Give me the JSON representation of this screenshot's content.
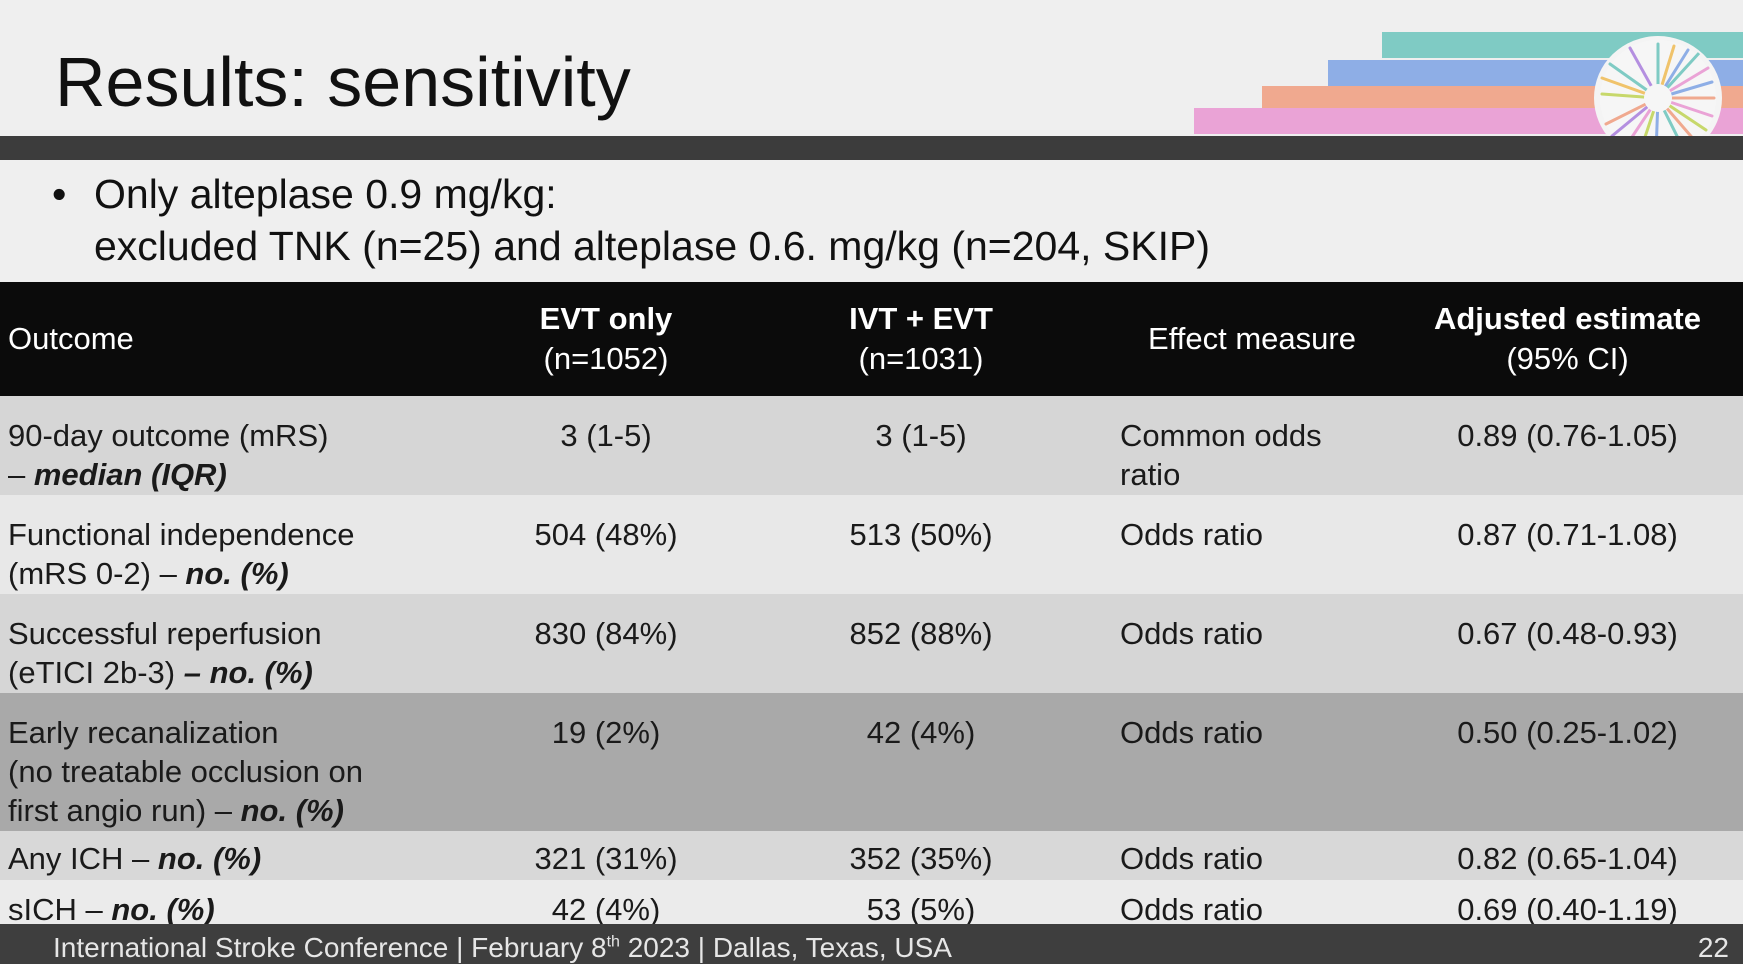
{
  "slide": {
    "title": "Results: sensitivity",
    "bullet_line1": "Only alteplase 0.9 mg/kg:",
    "bullet_line2": "excluded TNK (n=25) and alteplase 0.6. mg/kg (n=204, SKIP)"
  },
  "colors": {
    "title_bar": "#3c3c3c",
    "header_bg": "#0b0b0b",
    "deco_teal": "#7fcbc4",
    "deco_blue": "#8eaee6",
    "deco_salmon": "#f0a98f",
    "deco_pink": "#eaa3d6",
    "footer_bg": "#3e3e3e"
  },
  "table": {
    "headers": {
      "outcome": "Outcome",
      "evt_title": "EVT only",
      "evt_n": "(n=1052)",
      "ivt_title": "IVT + EVT",
      "ivt_n": "(n=1031)",
      "effect": "Effect measure",
      "adj_title": "Adjusted estimate",
      "adj_ci": "(95% CI)"
    },
    "rows": [
      {
        "outcome_l1": "90-day outcome (mRS)",
        "outcome_l2_plain": "– ",
        "outcome_l2_emph": "median (IQR)",
        "evt": "3 (1-5)",
        "ivt": "3 (1-5)",
        "effect_l1": "Common odds",
        "effect_l2": "ratio",
        "estimate": "0.89 (0.76-1.05)"
      },
      {
        "outcome_l1": "Functional independence",
        "outcome_l2_plain": "(mRS 0-2) – ",
        "outcome_l2_emph": "no. (%)",
        "evt": "504 (48%)",
        "ivt": "513 (50%)",
        "effect": "Odds ratio",
        "estimate": "0.87 (0.71-1.08)"
      },
      {
        "outcome_l1": "Successful reperfusion",
        "outcome_l2_plain": "(eTICI 2b-3) ",
        "outcome_l2_emph": "– no. (%)",
        "evt": "830 (84%)",
        "ivt": "852 (88%)",
        "effect": "Odds ratio",
        "estimate": "0.67 (0.48-0.93)"
      },
      {
        "outcome_l1": "Early recanalization",
        "outcome_l2": "(no treatable occlusion on",
        "outcome_l3_plain": "first angio run) – ",
        "outcome_l3_emph": "no. (%)",
        "evt": "19 (2%)",
        "ivt": "42 (4%)",
        "effect": "Odds ratio",
        "estimate": "0.50 (0.25-1.02)"
      },
      {
        "outcome_plain": "Any ICH – ",
        "outcome_emph": "no. (%)",
        "evt": "321 (31%)",
        "ivt": "352 (35%)",
        "effect": "Odds ratio",
        "estimate": "0.82 (0.65-1.04)"
      },
      {
        "outcome_plain": "sICH – ",
        "outcome_emph": "no. (%)",
        "evt": "42 (4%)",
        "ivt": "53 (5%)",
        "effect": "Odds ratio",
        "estimate": "0.69 (0.40-1.19)"
      }
    ]
  },
  "footer": {
    "conference_pre": "International Stroke Conference | February 8",
    "date_suffix": "th",
    "conference_post": " 2023 | Dallas, Texas, USA",
    "page_number": "22"
  }
}
